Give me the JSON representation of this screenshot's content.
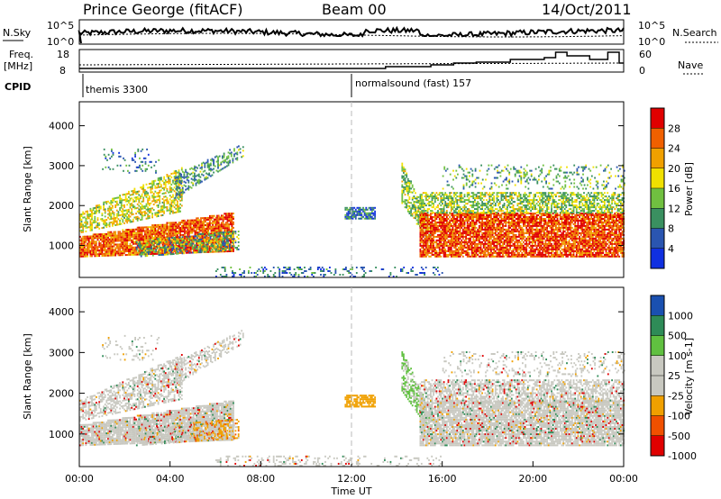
{
  "header": {
    "station": "Prince George (fitACF)",
    "beam": "Beam 00",
    "date": "14/Oct/2011"
  },
  "top_panel": {
    "left_label": "N.Sky",
    "right_label": "N.Search",
    "left_ticks": [
      "10^5",
      "10^0"
    ],
    "right_ticks": [
      "10^5",
      "10^0"
    ]
  },
  "freq_panel": {
    "left_label_1": "Freq.",
    "left_label_2": "[MHz]",
    "right_label": "Nave",
    "left_ticks": [
      "18",
      "8"
    ],
    "right_ticks": [
      "60",
      "0"
    ]
  },
  "cpid": {
    "label": "CPID",
    "modes": [
      {
        "name": "themis 3300",
        "start_hour": 0
      },
      {
        "name": "normalsound (fast) 157",
        "start_hour": 12
      }
    ]
  },
  "colors": {
    "power": [
      "#1030e0",
      "#2a55b0",
      "#3a9060",
      "#70c040",
      "#f0e000",
      "#f0a000",
      "#f06000",
      "#e00000"
    ],
    "velocity": [
      "#e00000",
      "#f05000",
      "#f0a000",
      "#c8c8c0",
      "#c8c8c0",
      "#60c040",
      "#2e8b57",
      "#1a50b0"
    ]
  },
  "chart_data": [
    {
      "type": "heatmap",
      "name": "power",
      "ylabel": "Slant Range [km]",
      "xlim": [
        0,
        24
      ],
      "ylim": [
        200,
        4600
      ],
      "yticks": [
        "1000",
        "2000",
        "3000",
        "4000"
      ],
      "colorbar_label": "Power [dB]",
      "colorbar_ticks": [
        "4",
        "8",
        "12",
        "16",
        "20",
        "24",
        "28"
      ],
      "clim": [
        0,
        32
      ]
    },
    {
      "type": "heatmap",
      "name": "velocity",
      "ylabel": "Slant Range [km]",
      "xlabel": "Time UT",
      "xlim": [
        0,
        24
      ],
      "ylim": [
        200,
        4600
      ],
      "yticks": [
        "1000",
        "2000",
        "3000",
        "4000"
      ],
      "xticks": [
        "00:00",
        "04:00",
        "08:00",
        "12:00",
        "16:00",
        "20:00",
        "00:00"
      ],
      "colorbar_label": "Velocity [m s-1]",
      "colorbar_ticks": [
        "1000",
        "500",
        "100",
        "25",
        "-25",
        "-100",
        "-500",
        "-1000"
      ]
    }
  ]
}
